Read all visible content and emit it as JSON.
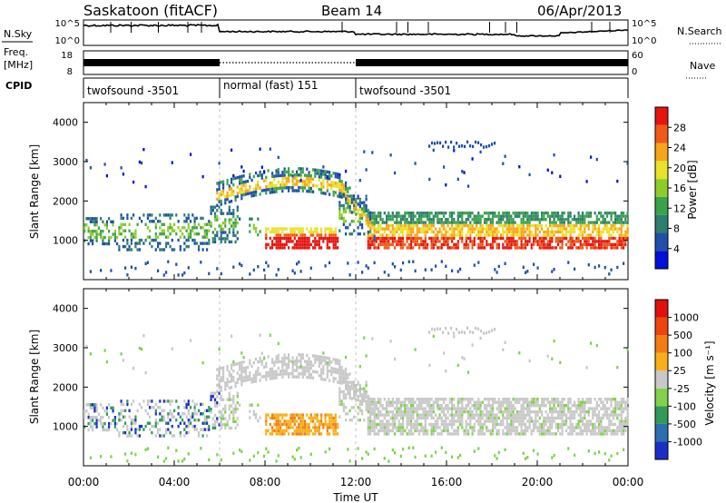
{
  "header": {
    "station": "Saskatoon (fitACF)",
    "beam": "Beam 14",
    "date": "06/Apr/2013"
  },
  "top_panels": {
    "nsky_label": "N.Sky",
    "nsky_ticks": [
      "10^5",
      "10^0"
    ],
    "nsearch_label": "N.Search",
    "nsearch_ticks": [
      "10^5",
      "10^0"
    ],
    "freq_label": "Freq.",
    "freq_unit": "[MHz]",
    "freq_ticks": [
      "18",
      "8"
    ],
    "nave_label": "Nave",
    "nave_ticks": [
      "60",
      "0"
    ],
    "cpid_label": "CPID",
    "cpid_segments": [
      {
        "label": "twofsound -3501",
        "start_hour": 0,
        "end_hour": 6
      },
      {
        "label": "normal (fast) 151",
        "start_hour": 6,
        "end_hour": 12
      },
      {
        "label": "twofsound -3501",
        "start_hour": 12,
        "end_hour": 24
      }
    ]
  },
  "chart_data": [
    {
      "type": "heatmap",
      "name": "power",
      "ylabel": "Slant Range [km]",
      "yticks": [
        "1000",
        "2000",
        "3000",
        "4000"
      ],
      "ylim": [
        0,
        4500
      ],
      "xlim": [
        0,
        24
      ],
      "colorbar": {
        "label": "Power [dB]",
        "ticks": [
          "4",
          "8",
          "12",
          "16",
          "20",
          "24",
          "28"
        ],
        "range": [
          0,
          30
        ],
        "colors": [
          "#0010d8",
          "#1f4fa8",
          "#2e7e6e",
          "#3aa34a",
          "#8fcc2b",
          "#e8e22a",
          "#f7a51a",
          "#ef5a18",
          "#e5140f"
        ]
      },
      "features": [
        {
          "desc": "main echo band",
          "x": [
            0,
            24
          ],
          "y_km": [
            800,
            1700
          ]
        },
        {
          "desc": "elevated band",
          "x": [
            6,
            12.5
          ],
          "y_km": [
            2000,
            2700
          ]
        },
        {
          "desc": "strong echo",
          "x": [
            8,
            11
          ],
          "y_km": [
            900,
            1300
          ]
        }
      ]
    },
    {
      "type": "heatmap",
      "name": "velocity",
      "ylabel": "Slant Range [km]",
      "yticks": [
        "1000",
        "2000",
        "3000",
        "4000"
      ],
      "ylim": [
        0,
        4500
      ],
      "xlim": [
        0,
        24
      ],
      "colorbar": {
        "label": "Velocity [m s⁻¹]",
        "ticks": [
          "1000",
          "500",
          "100",
          "25",
          "-25",
          "-100",
          "-500",
          "-1000"
        ],
        "colors": [
          "#1a2fc8",
          "#2a6fb0",
          "#2f9a5a",
          "#7fd24a",
          "#c8c8c8",
          "#f7b019",
          "#f37c14",
          "#ee4410",
          "#e0100c"
        ]
      }
    }
  ],
  "xaxis": {
    "ticks": [
      "00:00",
      "04:00",
      "08:00",
      "12:00",
      "16:00",
      "20:00",
      "00:00"
    ],
    "label": "Time UT"
  }
}
